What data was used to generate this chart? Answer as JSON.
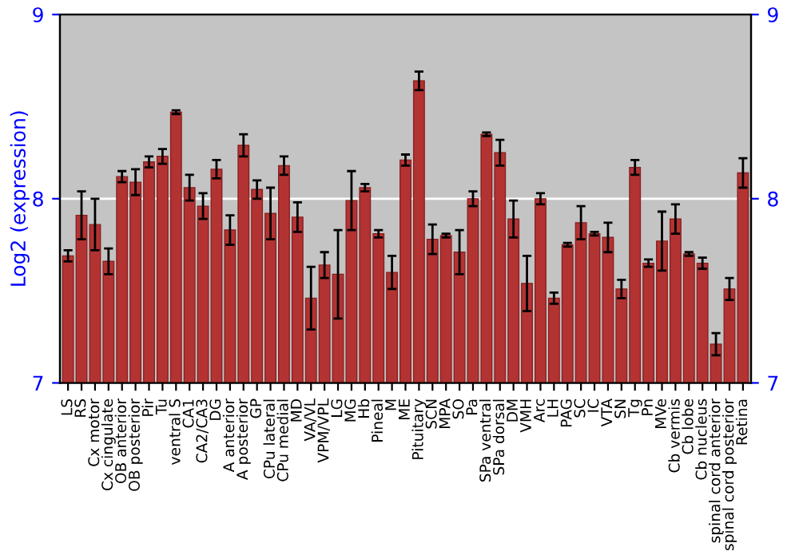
{
  "chart_data": {
    "type": "bar",
    "ylabel": "Log2 (expression)",
    "categories": [
      "LS",
      "RS",
      "Cx motor",
      "Cx cingulate",
      "OB anterior",
      "OB posterior",
      "Pir",
      "Tu",
      "ventral S",
      "CA1",
      "CA2/CA3",
      "DG",
      "A anterior",
      "A posterior",
      "GP",
      "CPu lateral",
      "CPu medial",
      "MD",
      "VA/VL",
      "VPM/VPL",
      "LG",
      "MG",
      "Hb",
      "Pineal",
      "M",
      "ME",
      "Pituitary",
      "SCN",
      "MPA",
      "SO",
      "Pa",
      "SPa ventral",
      "SPa dorsal",
      "DM",
      "VMH",
      "Arc",
      "LH",
      "PAG",
      "SC",
      "IC",
      "VTA",
      "SN",
      "Tg",
      "Pn",
      "MVe",
      "Cb vermis",
      "Cb lobe",
      "Cb nucleus",
      "spinal cord anterior",
      "spinal cord posterior",
      "Retina"
    ],
    "series": [
      {
        "color": "#b33333",
        "values": [
          7.69,
          7.91,
          7.86,
          7.66,
          8.12,
          8.09,
          8.2,
          8.23,
          8.47,
          8.06,
          7.96,
          8.16,
          7.83,
          8.29,
          8.05,
          7.92,
          8.18,
          7.9,
          7.46,
          7.64,
          7.59,
          7.99,
          8.06,
          7.81,
          7.6,
          8.21,
          8.64,
          7.78,
          7.8,
          7.71,
          8.0,
          8.35,
          8.25,
          7.89,
          7.54,
          8.0,
          7.46,
          7.75,
          7.87,
          7.81,
          7.79,
          7.51,
          8.17,
          7.65,
          7.77,
          7.89,
          7.7,
          7.65,
          7.21,
          7.51,
          8.14
        ],
        "errors": [
          0.03,
          0.13,
          0.14,
          0.07,
          0.03,
          0.07,
          0.03,
          0.04,
          0.01,
          0.07,
          0.07,
          0.05,
          0.08,
          0.06,
          0.05,
          0.14,
          0.05,
          0.08,
          0.17,
          0.07,
          0.24,
          0.16,
          0.02,
          0.02,
          0.09,
          0.03,
          0.05,
          0.08,
          0.01,
          0.12,
          0.04,
          0.01,
          0.07,
          0.1,
          0.15,
          0.03,
          0.03,
          0.01,
          0.09,
          0.01,
          0.08,
          0.05,
          0.04,
          0.02,
          0.16,
          0.08,
          0.01,
          0.03,
          0.06,
          0.06,
          0.08
        ]
      }
    ],
    "ylim": [
      7,
      9
    ],
    "yticks": [
      7,
      8,
      9
    ],
    "y2lim": [
      7,
      9
    ],
    "y2ticks": [
      7,
      8,
      9
    ],
    "grid": "y"
  }
}
